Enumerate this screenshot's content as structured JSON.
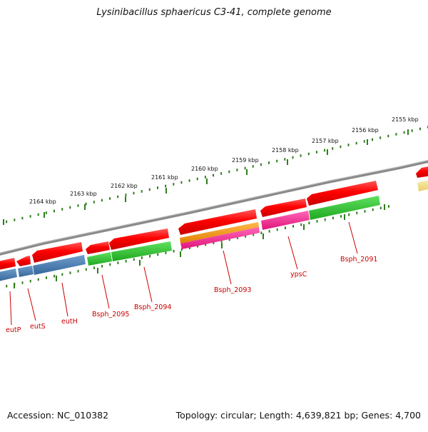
{
  "title": "Lysinibacillus sphaericus C3-41, complete genome",
  "ticks": [
    {
      "label": "2155 kbp",
      "kb": 2155
    },
    {
      "label": "2156 kbp",
      "kb": 2156
    },
    {
      "label": "2157 kbp",
      "kb": 2157
    },
    {
      "label": "2158 kbp",
      "kb": 2158
    },
    {
      "label": "2159 kbp",
      "kb": 2159
    },
    {
      "label": "2160 kbp",
      "kb": 2160
    },
    {
      "label": "2161 kbp",
      "kb": 2161
    },
    {
      "label": "2162 kbp",
      "kb": 2162
    },
    {
      "label": "2163 kbp",
      "kb": 2163
    },
    {
      "label": "2164 kbp",
      "kb": 2164
    }
  ],
  "gene_labels": [
    {
      "label": "eutP"
    },
    {
      "label": "eutS"
    },
    {
      "label": "eutH"
    },
    {
      "label": "Bsph_2095"
    },
    {
      "label": "Bsph_2094"
    },
    {
      "label": "Bsph_2093"
    },
    {
      "label": "ypsC"
    },
    {
      "label": "Bsph_2091"
    }
  ],
  "colors": {
    "cds": "#ff0000",
    "blue_track": "#4a7fb5",
    "green_track": "#33cc33",
    "orange_track": "#ff9900",
    "magenta_track": "#ff3399",
    "yellow_track": "#f2e08a",
    "backbone": "#888888",
    "tick": "#2e7d1a",
    "label": "#cc0000"
  },
  "footer": {
    "accession": "Accession: NC_010382",
    "summary": "Topology: circular; Length: 4,639,821 bp; Genes: 4,700"
  }
}
